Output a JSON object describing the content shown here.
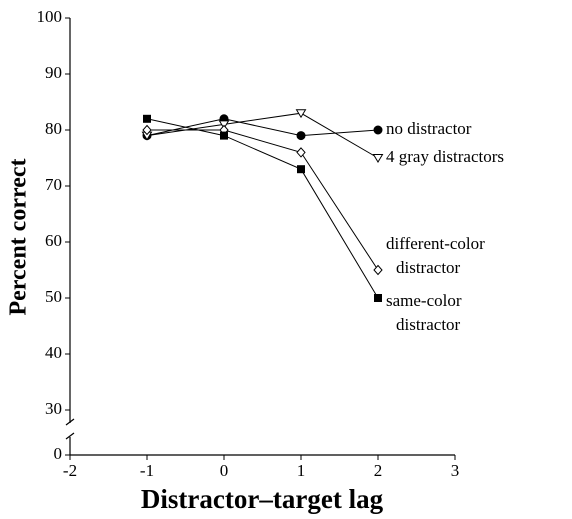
{
  "chart_data": {
    "type": "line",
    "x_label": "Distractor–target lag",
    "y_label": "Percent correct",
    "x": [
      -1,
      0,
      1,
      2
    ],
    "xlim": [
      -2,
      3
    ],
    "xticks": [
      -2,
      -1,
      0,
      1,
      2,
      3
    ],
    "ylim": [
      0,
      100
    ],
    "yticks": [
      0,
      30,
      40,
      50,
      60,
      70,
      80,
      90,
      100
    ],
    "y_break": [
      0,
      30
    ],
    "series": [
      {
        "name": "no distractor",
        "color": "#000000",
        "marker": "circle",
        "filled": true,
        "values": [
          79,
          82,
          79,
          80
        ]
      },
      {
        "name": "4 gray distractors",
        "color": "#000000",
        "marker": "triangle-down",
        "filled": false,
        "values": [
          79,
          81,
          83,
          75
        ]
      },
      {
        "name": "different-color distractor",
        "color": "#000000",
        "marker": "diamond",
        "filled": false,
        "wrap": true,
        "values": [
          80,
          80,
          76,
          55
        ]
      },
      {
        "name": "same-color distractor",
        "color": "#000000",
        "marker": "square",
        "filled": true,
        "wrap": true,
        "values": [
          82,
          79,
          73,
          50
        ]
      }
    ]
  }
}
